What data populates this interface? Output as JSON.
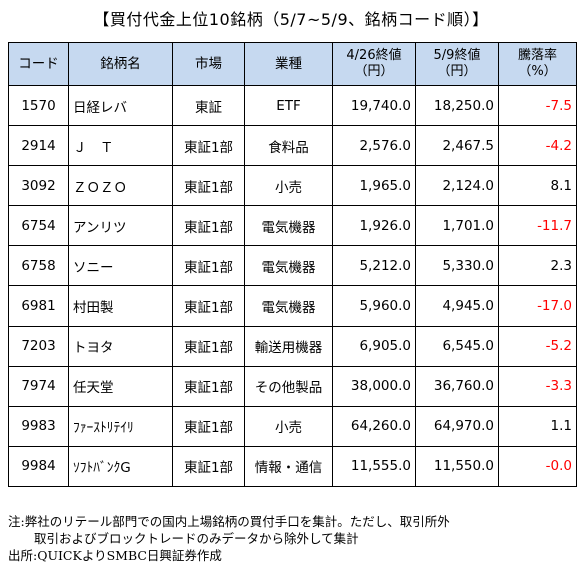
{
  "title": "【買付代金上位10銘柄（5/7~5/9、銘柄コード順）】",
  "headers": {
    "code": "コード",
    "name": "銘柄名",
    "market": "市場",
    "sector": "業種",
    "price_a_1": "4/26終値",
    "price_a_2": "（円）",
    "price_b_1": "5/9終値",
    "price_b_2": "（円）",
    "change_1": "騰落率",
    "change_2": "（%）"
  },
  "rows": [
    {
      "code": "1570",
      "name": "日経レバ",
      "market": "東証",
      "sector": "ETF",
      "price_a": "19,740.0",
      "price_b": "18,250.0",
      "change": "-7.5",
      "sign": "neg"
    },
    {
      "code": "2914",
      "name": "Ｊ　Ｔ",
      "market": "東証1部",
      "sector": "食料品",
      "price_a": "2,576.0",
      "price_b": "2,467.5",
      "change": "-4.2",
      "sign": "neg"
    },
    {
      "code": "3092",
      "name": "ＺＯＺＯ",
      "market": "東証1部",
      "sector": "小売",
      "price_a": "1,965.0",
      "price_b": "2,124.0",
      "change": "8.1",
      "sign": "pos"
    },
    {
      "code": "6754",
      "name": "アンリツ",
      "market": "東証1部",
      "sector": "電気機器",
      "price_a": "1,926.0",
      "price_b": "1,701.0",
      "change": "-11.7",
      "sign": "neg"
    },
    {
      "code": "6758",
      "name": "ソニー",
      "market": "東証1部",
      "sector": "電気機器",
      "price_a": "5,212.0",
      "price_b": "5,330.0",
      "change": "2.3",
      "sign": "pos"
    },
    {
      "code": "6981",
      "name": "村田製",
      "market": "東証1部",
      "sector": "電気機器",
      "price_a": "5,960.0",
      "price_b": "4,945.0",
      "change": "-17.0",
      "sign": "neg"
    },
    {
      "code": "7203",
      "name": "トヨタ",
      "market": "東証1部",
      "sector": "輸送用機器",
      "price_a": "6,905.0",
      "price_b": "6,545.0",
      "change": "-5.2",
      "sign": "neg"
    },
    {
      "code": "7974",
      "name": "任天堂",
      "market": "東証1部",
      "sector": "その他製品",
      "price_a": "38,000.0",
      "price_b": "36,760.0",
      "change": "-3.3",
      "sign": "neg"
    },
    {
      "code": "9983",
      "name": "ﾌｧｰｽﾄﾘﾃｲﾘ",
      "market": "東証1部",
      "sector": "小売",
      "price_a": "64,260.0",
      "price_b": "64,970.0",
      "change": "1.1",
      "sign": "pos"
    },
    {
      "code": "9984",
      "name": "ｿﾌﾄﾊﾞﾝｸG",
      "market": "東証1部",
      "sector": "情報・通信",
      "price_a": "11,555.0",
      "price_b": "11,550.0",
      "change": "-0.0",
      "sign": "neg"
    }
  ],
  "notes": {
    "line1": "注:弊社のリテール部門での国内上場銘柄の買付手口を集計。ただし、取引所外",
    "line2": "取引およびブロックトレードのみデータから除外して集計",
    "line3": "出所:QUICKよりSMBC日興証券作成"
  },
  "colors": {
    "header_bg": "#c6d9f0",
    "negative": "#ff0000",
    "positive": "#000000"
  }
}
